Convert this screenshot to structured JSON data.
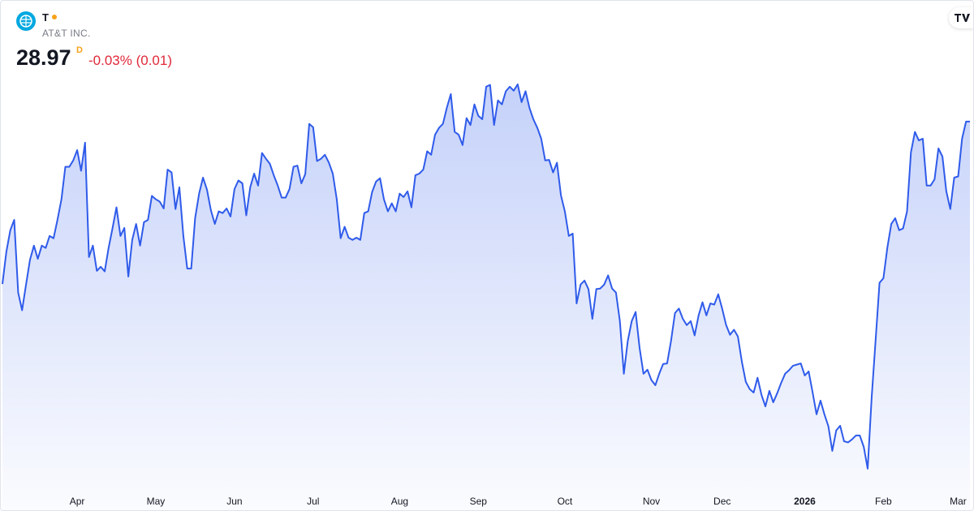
{
  "chart_data": {
    "type": "area",
    "symbol": "T",
    "company": "AT&T INC.",
    "price": "28.97",
    "interval": "D",
    "change": "-0.03% (0.01)",
    "color": "#2f5bea",
    "values": [
      26.13,
      26.69,
      27.07,
      27.25,
      25.98,
      25.67,
      26.12,
      26.55,
      26.8,
      26.57,
      26.8,
      26.76,
      26.97,
      26.93,
      27.25,
      27.61,
      28.18,
      28.18,
      28.29,
      28.47,
      28.11,
      28.6,
      26.6,
      26.8,
      26.36,
      26.43,
      26.35,
      26.76,
      27.11,
      27.47,
      26.97,
      27.11,
      26.26,
      26.9,
      27.18,
      26.8,
      27.21,
      27.25,
      27.67,
      27.61,
      27.57,
      27.45,
      28.13,
      28.08,
      27.44,
      27.82,
      26.97,
      26.4,
      26.4,
      27.28,
      27.71,
      27.99,
      27.78,
      27.42,
      27.18,
      27.4,
      27.37,
      27.45,
      27.31,
      27.79,
      27.94,
      27.89,
      27.33,
      27.82,
      28.06,
      27.85,
      28.42,
      28.32,
      28.23,
      28.03,
      27.85,
      27.64,
      27.64,
      27.79,
      28.18,
      28.2,
      27.89,
      28.05,
      28.93,
      28.87,
      28.28,
      28.32,
      28.39,
      28.25,
      28.06,
      27.61,
      26.93,
      27.13,
      26.94,
      26.9,
      26.94,
      26.9,
      27.37,
      27.4,
      27.74,
      27.92,
      27.98,
      27.61,
      27.4,
      27.54,
      27.4,
      27.71,
      27.65,
      27.75,
      27.47,
      28.03,
      28.06,
      28.13,
      28.45,
      28.39,
      28.74,
      28.86,
      28.93,
      29.21,
      29.45,
      28.79,
      28.74,
      28.56,
      29.03,
      28.91,
      29.27,
      29.07,
      29.01,
      29.58,
      29.61,
      28.91,
      29.34,
      29.27,
      29.5,
      29.58,
      29.51,
      29.62,
      29.31,
      29.5,
      29.21,
      29.01,
      28.86,
      28.67,
      28.29,
      28.3,
      28.08,
      28.25,
      27.68,
      27.4,
      26.97,
      27.01,
      25.79,
      26.12,
      26.19,
      26.04,
      25.52,
      26.04,
      26.05,
      26.12,
      26.28,
      26.05,
      25.98,
      25.48,
      24.56,
      25.13,
      25.48,
      25.64,
      25.01,
      24.56,
      24.63,
      24.45,
      24.36,
      24.56,
      24.73,
      24.74,
      25.13,
      25.62,
      25.7,
      25.52,
      25.41,
      25.48,
      25.23,
      25.58,
      25.81,
      25.58,
      25.79,
      25.77,
      25.95,
      25.7,
      25.41,
      25.24,
      25.33,
      25.21,
      24.77,
      24.42,
      24.29,
      24.23,
      24.49,
      24.19,
      23.99,
      24.26,
      24.06,
      24.22,
      24.4,
      24.56,
      24.62,
      24.7,
      24.72,
      24.74,
      24.53,
      24.6,
      24.23,
      23.85,
      24.09,
      23.85,
      23.64,
      23.21,
      23.57,
      23.65,
      23.38,
      23.36,
      23.41,
      23.48,
      23.48,
      23.28,
      22.9,
      24.14,
      25.13,
      26.15,
      26.23,
      26.76,
      27.18,
      27.28,
      27.07,
      27.1,
      27.4,
      28.43,
      28.79,
      28.64,
      28.67,
      27.85,
      27.85,
      27.96,
      28.5,
      28.36,
      27.75,
      27.44,
      27.99,
      28.01,
      28.67,
      28.97,
      28.97
    ],
    "xlim": [
      0,
      246
    ],
    "xticks": [
      {
        "value": 19,
        "label": "Apr"
      },
      {
        "value": 39,
        "label": "May"
      },
      {
        "value": 59,
        "label": "Jun"
      },
      {
        "value": 79,
        "label": "Jul"
      },
      {
        "value": 101,
        "label": "Aug"
      },
      {
        "value": 121,
        "label": "Sep"
      },
      {
        "value": 143,
        "label": "Oct"
      },
      {
        "value": 165,
        "label": "Nov"
      },
      {
        "value": 183,
        "label": "Dec"
      },
      {
        "value": 204,
        "label": "2026"
      },
      {
        "value": 224,
        "label": "Feb"
      },
      {
        "value": 243,
        "label": "Mar"
      }
    ],
    "ylim": [
      22.5,
      30.5
    ]
  }
}
